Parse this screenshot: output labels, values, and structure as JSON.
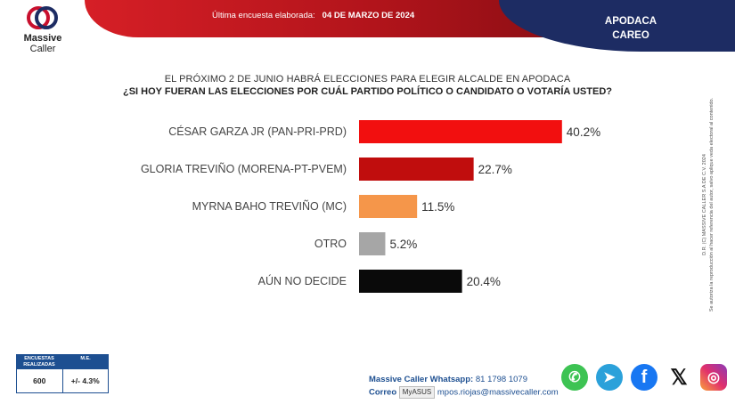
{
  "brand": {
    "line1": "Massive",
    "line2": "Caller"
  },
  "header": {
    "survey_label": "Última encuesta elaborada:",
    "survey_date": "04 DE MARZO DE 2024",
    "region_line1": "APODACA",
    "region_line2": "CAREO"
  },
  "question": {
    "intro": "EL PRÓXIMO 2 DE JUNIO HABRÁ ELECCIONES PARA ELEGIR ALCALDE EN APODACA",
    "text": "¿SI HOY FUERAN LAS ELECCIONES POR CUÁL PARTIDO POLÍTICO O CANDIDATO O VOTARÍA USTED?"
  },
  "chart_data": {
    "type": "bar",
    "orientation": "horizontal",
    "categories": [
      "CÉSAR GARZA JR (PAN-PRI-PRD)",
      "GLORIA TREVIÑO (MORENA-PT-PVEM)",
      "MYRNA BAHO TREVIÑO (MC)",
      "OTRO",
      "AÚN NO DECIDE"
    ],
    "values": [
      40.2,
      22.7,
      11.5,
      5.2,
      20.4
    ],
    "value_labels": [
      "40.2%",
      "22.7%",
      "11.5%",
      "5.2%",
      "20.4%"
    ],
    "colors": [
      "#f20f0f",
      "#c00d0d",
      "#f5964a",
      "#a6a6a6",
      "#0a0a0a"
    ],
    "xlim": [
      0,
      45
    ],
    "grid": false,
    "legend": "none"
  },
  "side_note": {
    "line1": "D.R. (C) MASSIVE CALLER S.A DE C.V. 2024",
    "line2": "Se autoriza la reproducción al hacer referencia del autor, salvo aplique veda electoral al contenido."
  },
  "stats": {
    "col1_header": "ENCUESTAS REALIZADAS",
    "col2_header": "M.E.",
    "col1_value": "600",
    "col2_value": "+/- 4.3%"
  },
  "contact": {
    "whatsapp_label": "Massive Caller Whatsapp:",
    "whatsapp_value": "81 1798 1079",
    "email_label": "Correo",
    "email_value": "mpos.riojas@massivecaller.com",
    "tooltip": "MyASUS"
  },
  "socials": [
    "whatsapp-icon",
    "telegram-icon",
    "facebook-icon",
    "x-icon",
    "instagram-icon"
  ]
}
